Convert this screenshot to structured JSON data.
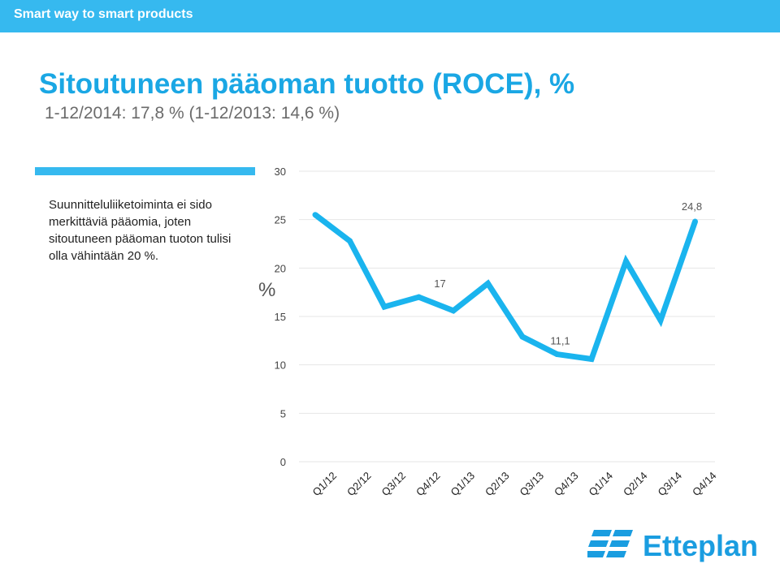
{
  "header": {
    "tagline": "Smart way to smart products"
  },
  "slide": {
    "note": "Suunnitteluliiketoiminta ei sido merkittäviä pääomia, joten sitoutuneen pääoman tuoton tulisi olla vähintään 20 %."
  },
  "colors": {
    "accent": "#36b9ef",
    "title": "#1aa7e4",
    "line": "#1ab4ee"
  },
  "logo": {
    "name": "Etteplan",
    "icon": "etteplan-logo-icon"
  },
  "chart_data": {
    "type": "line",
    "title": "Sitoutuneen pääoman tuotto (ROCE), %",
    "subtitle": "1-12/2014: 17,8 % (1-12/2013: 14,6 %)",
    "ylabel": "%",
    "ylim": [
      0,
      30
    ],
    "yticks": [
      "0",
      "5",
      "10",
      "15",
      "20",
      "25",
      "30"
    ],
    "grid": true,
    "categories": [
      "Q1/12",
      "Q2/12",
      "Q3/12",
      "Q4/12",
      "Q1/13",
      "Q2/13",
      "Q3/13",
      "Q4/13",
      "Q1/14",
      "Q2/14",
      "Q3/14",
      "Q4/14"
    ],
    "series": [
      {
        "values": [
          25.5,
          22.8,
          16.0,
          17.0,
          15.6,
          18.4,
          12.9,
          11.1,
          10.6,
          20.7,
          14.6,
          24.8
        ]
      }
    ],
    "annotations": [
      {
        "index": 3,
        "text": "17"
      },
      {
        "index": 7,
        "text": "11,1"
      },
      {
        "index": 11,
        "text": "24,8"
      }
    ]
  }
}
